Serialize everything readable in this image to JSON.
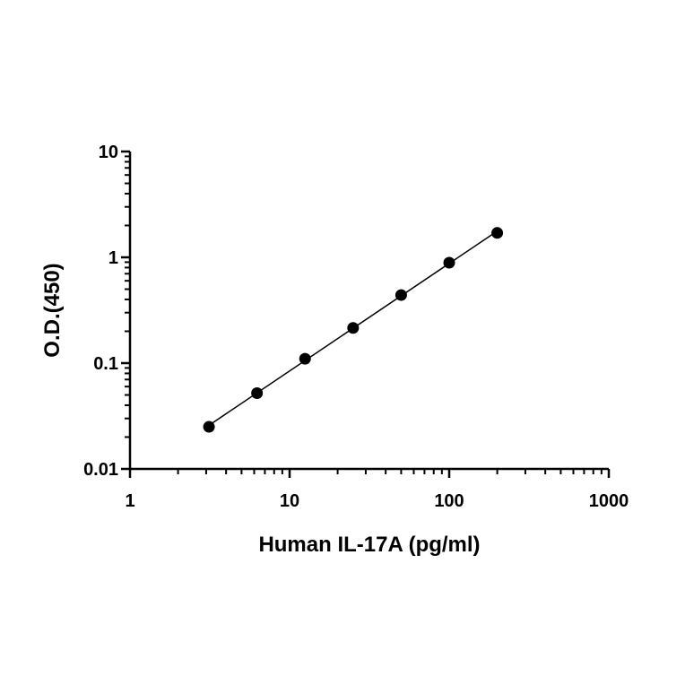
{
  "chart_data": {
    "type": "scatter",
    "xlabel": "Human IL-17A (pg/ml)",
    "ylabel": "O.D.(450)",
    "x_scale": "log",
    "y_scale": "log",
    "xlim": [
      1,
      1000
    ],
    "ylim": [
      0.01,
      10
    ],
    "x_ticks": [
      1,
      10,
      100,
      1000
    ],
    "x_tick_labels": [
      "1",
      "10",
      "100",
      "1000"
    ],
    "y_ticks": [
      0.01,
      0.1,
      1,
      10
    ],
    "y_tick_labels": [
      "0.01",
      "0.1",
      "1",
      "10"
    ],
    "grid": false,
    "legend": "none",
    "point_color": "#000000",
    "series": [
      {
        "x": [
          3.125,
          6.25,
          12.5,
          25,
          50,
          100,
          200
        ],
        "y": [
          0.025,
          0.052,
          0.11,
          0.215,
          0.44,
          0.89,
          1.7
        ],
        "fit": "line"
      }
    ]
  }
}
